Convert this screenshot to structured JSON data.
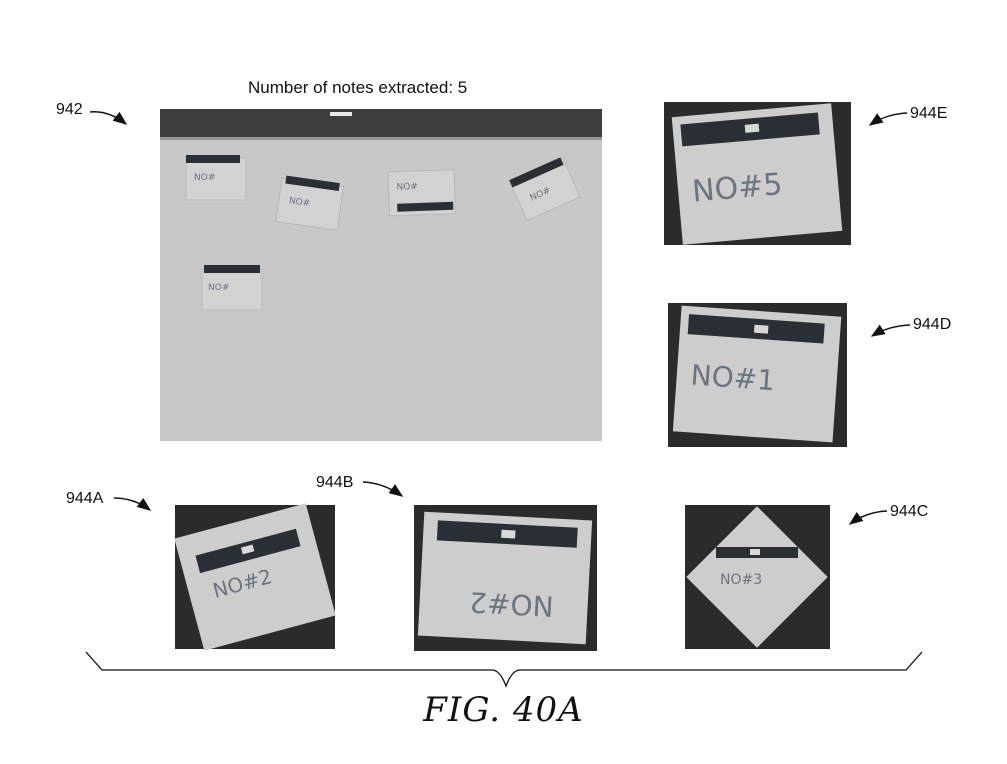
{
  "caption": "Number of notes extracted: 5",
  "figure_title": "FIG. 40A",
  "labels": {
    "main_image": "942",
    "note_e": "944E",
    "note_d": "944D",
    "note_a": "944A",
    "note_b": "944B",
    "note_c": "944C"
  },
  "whiteboard_notes": [
    "NO#",
    "NO#",
    "NO#",
    "NO#",
    "NO#"
  ],
  "extracted_notes": {
    "a": "NO#2",
    "b": "NO#2",
    "c": "NO#3",
    "d": "NO#1",
    "e": "NO#5"
  },
  "colors": {
    "tile_background": "#2b2b2b",
    "note_paper": "#cfcfcf",
    "note_bar": "#2a2f35",
    "whiteboard": "#c9c9c9",
    "whiteboard_top": "#3e3e3e"
  }
}
